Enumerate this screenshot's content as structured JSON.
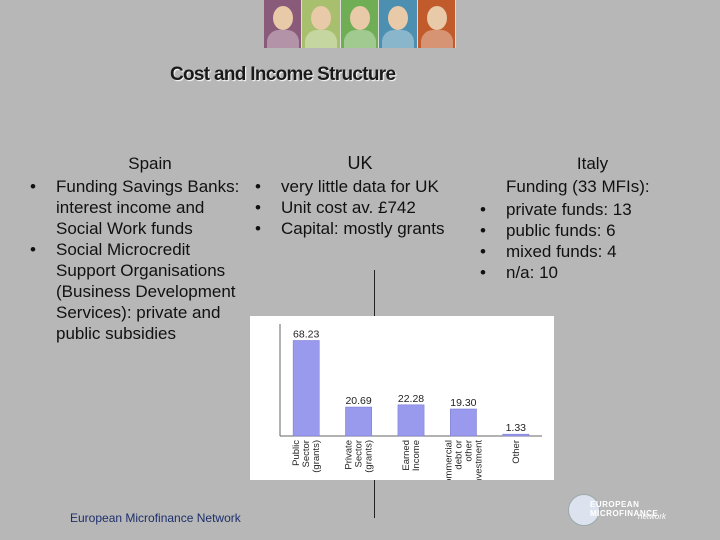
{
  "title": "Cost and Income Structure",
  "photo_colors": [
    "#8a5a7a",
    "#a8c06e",
    "#6fae55",
    "#4c8fb0",
    "#c25b2c"
  ],
  "spain": {
    "heading": "Spain",
    "items": [
      "Funding Savings Banks: interest income and Social Work funds",
      "Social Microcredit Support Organisations (Business Development Services): private and public subsidies"
    ]
  },
  "uk": {
    "heading": "UK",
    "items": [
      "very little data for UK",
      "Unit cost av. £742",
      "Capital: mostly grants"
    ]
  },
  "italy": {
    "heading": "Italy",
    "subheading": "Funding (33 MFIs):",
    "items": [
      "private funds: 13",
      "public funds: 6",
      "mixed funds: 4",
      "n/a: 10"
    ]
  },
  "bullet": "•",
  "chart_data": {
    "type": "bar",
    "categories": [
      "Public Sector (grants)",
      "Private Sector (grants)",
      "Earned Income",
      "Commercial debt or other investment",
      "Other"
    ],
    "category_lines": [
      [
        "Public",
        "Sector",
        "(grants)"
      ],
      [
        "Private",
        "Sector",
        "(grants)"
      ],
      [
        "Earned",
        "Income"
      ],
      [
        "Commercial",
        "debt or",
        "other",
        "investment"
      ],
      [
        "Other"
      ]
    ],
    "values": [
      68.23,
      20.69,
      22.28,
      19.3,
      1.33
    ],
    "value_labels": [
      "68.23",
      "20.69",
      "22.28",
      "19.30",
      "1.33"
    ],
    "ylim": [
      0,
      80
    ],
    "color": "#9999ee"
  },
  "footer": {
    "left_text": "European Microfinance Network",
    "logo_line1": "EUROPEAN MICROFINANCE",
    "logo_line2": "network"
  }
}
